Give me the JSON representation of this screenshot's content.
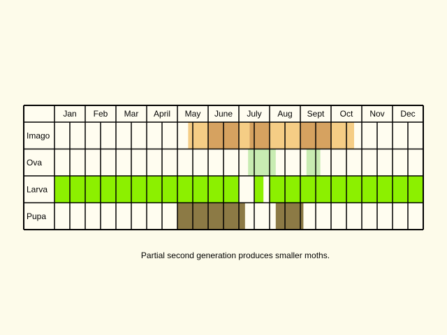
{
  "chart_data": {
    "type": "table",
    "months": [
      "Jan",
      "Feb",
      "Mar",
      "April",
      "May",
      "June",
      "July",
      "Aug",
      "Sept",
      "Oct",
      "Nov",
      "Dec"
    ],
    "weeks_per_month": 2,
    "stages": [
      {
        "name": "Imago",
        "segments": [
          {
            "from_week": 8.7,
            "to_week": 10,
            "color": "#f5cd85"
          },
          {
            "from_week": 10,
            "to_week": 12,
            "color": "#d6a260"
          },
          {
            "from_week": 12,
            "to_week": 12.7,
            "color": "#f5cd85"
          },
          {
            "from_week": 12.7,
            "to_week": 14,
            "color": "#d6a260"
          },
          {
            "from_week": 14,
            "to_week": 16,
            "color": "#f5cd85"
          },
          {
            "from_week": 16,
            "to_week": 18,
            "color": "#d6a260"
          },
          {
            "from_week": 18,
            "to_week": 19.5,
            "color": "#f5cd85"
          }
        ]
      },
      {
        "name": "Ova",
        "segments": [
          {
            "from_week": 12.6,
            "to_week": 14.4,
            "color": "#c8ecb2"
          },
          {
            "from_week": 16.4,
            "to_week": 17.3,
            "color": "#c8ecb2"
          }
        ]
      },
      {
        "name": "Larva",
        "segments": [
          {
            "from_week": 0,
            "to_week": 12,
            "color": "#8cf000"
          },
          {
            "from_week": 13,
            "to_week": 13.6,
            "color": "#8cf000"
          },
          {
            "from_week": 14,
            "to_week": 24,
            "color": "#8cf000"
          }
        ]
      },
      {
        "name": "Pupa",
        "segments": [
          {
            "from_week": 8,
            "to_week": 12.4,
            "color": "#8c7a45"
          },
          {
            "from_week": 14.4,
            "to_week": 16.2,
            "color": "#8c7a45"
          }
        ]
      }
    ],
    "caption": "Partial second generation produces smaller moths."
  }
}
